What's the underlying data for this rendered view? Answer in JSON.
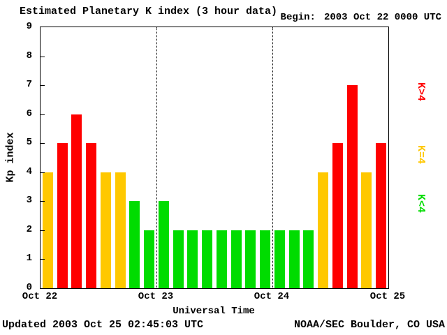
{
  "header": {
    "title": "Estimated Planetary K index (3 hour data)",
    "begin_label": "Begin:",
    "begin_value": "2003 Oct 22 0000 UTC"
  },
  "footer": {
    "updated": "Updated 2003 Oct 25 02:45:03 UTC",
    "source": "NOAA/SEC Boulder, CO USA"
  },
  "chart_data": {
    "type": "bar",
    "title": "Estimated Planetary K index (3 hour data)",
    "xlabel": "Universal Time",
    "ylabel": "Kp index",
    "ylim": [
      0,
      9
    ],
    "yticks": [
      0,
      1,
      2,
      3,
      4,
      5,
      6,
      7,
      8,
      9
    ],
    "x_day_labels": [
      "Oct 22",
      "Oct 23",
      "Oct 24",
      "Oct 25"
    ],
    "hours_per_bar": 3,
    "values": [
      4,
      5,
      6,
      5,
      4,
      4,
      3,
      2,
      3,
      2,
      2,
      2,
      2,
      2,
      2,
      2,
      2,
      2,
      2,
      4,
      5,
      7,
      4,
      5
    ],
    "colors": {
      "below4": "#00dc00",
      "equal4": "#ffc800",
      "above4": "#ff0000"
    },
    "legend": [
      {
        "label": "K>4",
        "color": "#ff0000"
      },
      {
        "label": "K=4",
        "color": "#ffc800"
      },
      {
        "label": "K<4",
        "color": "#00dc00"
      }
    ],
    "grid": "dotted vertical lines at day boundaries",
    "legend_position": "right, rotated 90deg"
  }
}
